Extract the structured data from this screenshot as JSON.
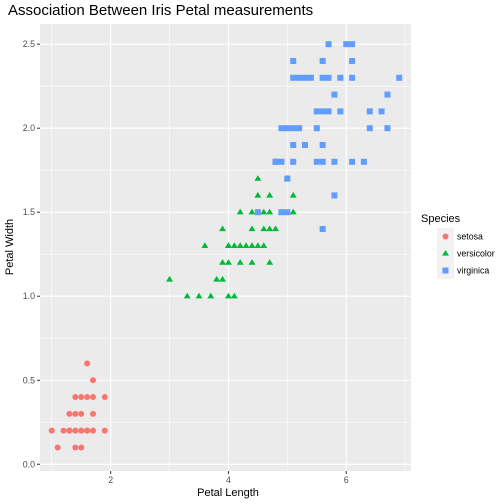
{
  "chart_data": {
    "type": "scatter",
    "title": "Association Between Iris Petal measurements",
    "xlabel": "Petal Length",
    "ylabel": "Petal Width",
    "xlim": [
      0.8,
      7.1
    ],
    "ylim": [
      -0.04,
      2.62
    ],
    "x_ticks": [
      2,
      4,
      6
    ],
    "x_tick_labels": [
      "2",
      "4",
      "6"
    ],
    "y_ticks": [
      0.0,
      0.5,
      1.0,
      1.5,
      2.0,
      2.5
    ],
    "y_tick_labels": [
      "0.0",
      "0.5",
      "1.0",
      "1.5",
      "2.0",
      "2.5"
    ],
    "grid": true,
    "background": "#ebebeb",
    "legend": {
      "title": "Species",
      "position": "right",
      "entries": [
        "setosa",
        "versicolor",
        "virginica"
      ]
    },
    "series": [
      {
        "name": "setosa",
        "color": "#f8766d",
        "shape": "circle",
        "points": [
          [
            1.6,
            0.6
          ],
          [
            1.7,
            0.5
          ],
          [
            1.4,
            0.4
          ],
          [
            1.5,
            0.4
          ],
          [
            1.6,
            0.4
          ],
          [
            1.7,
            0.4
          ],
          [
            1.9,
            0.4
          ],
          [
            1.3,
            0.3
          ],
          [
            1.4,
            0.3
          ],
          [
            1.5,
            0.3
          ],
          [
            1.7,
            0.3
          ],
          [
            1.3,
            0.2
          ],
          [
            1.4,
            0.2
          ],
          [
            1.5,
            0.2
          ],
          [
            1.6,
            0.2
          ],
          [
            1.7,
            0.2
          ],
          [
            1.9,
            0.2
          ],
          [
            1.2,
            0.2
          ],
          [
            1.0,
            0.2
          ],
          [
            1.1,
            0.1
          ],
          [
            1.4,
            0.1
          ],
          [
            1.5,
            0.1
          ],
          [
            1.6,
            0.2
          ],
          [
            1.3,
            0.2
          ],
          [
            1.5,
            0.2
          ]
        ]
      },
      {
        "name": "versicolor",
        "color": "#00ba38",
        "shape": "triangle",
        "points": [
          [
            5.0,
            1.7
          ],
          [
            4.5,
            1.6
          ],
          [
            4.7,
            1.6
          ],
          [
            4.8,
            1.8
          ],
          [
            4.4,
            1.5
          ],
          [
            4.5,
            1.5
          ],
          [
            4.6,
            1.5
          ],
          [
            4.9,
            1.5
          ],
          [
            5.1,
            1.6
          ],
          [
            4.2,
            1.5
          ],
          [
            4.7,
            1.4
          ],
          [
            4.6,
            1.4
          ],
          [
            4.4,
            1.4
          ],
          [
            4.8,
            1.4
          ],
          [
            3.9,
            1.4
          ],
          [
            4.0,
            1.3
          ],
          [
            4.1,
            1.3
          ],
          [
            4.2,
            1.3
          ],
          [
            4.3,
            1.3
          ],
          [
            4.4,
            1.3
          ],
          [
            4.5,
            1.3
          ],
          [
            4.6,
            1.3
          ],
          [
            3.6,
            1.3
          ],
          [
            3.9,
            1.2
          ],
          [
            4.0,
            1.2
          ],
          [
            4.2,
            1.2
          ],
          [
            4.4,
            1.2
          ],
          [
            4.7,
            1.2
          ],
          [
            3.8,
            1.1
          ],
          [
            3.9,
            1.1
          ],
          [
            3.0,
            1.1
          ],
          [
            4.1,
            1.0
          ],
          [
            3.5,
            1.0
          ],
          [
            3.3,
            1.0
          ],
          [
            3.7,
            1.0
          ],
          [
            4.0,
            1.0
          ],
          [
            4.5,
            1.7
          ],
          [
            5.1,
            1.5
          ],
          [
            4.0,
            1.3
          ],
          [
            4.7,
            1.5
          ]
        ]
      },
      {
        "name": "virginica",
        "color": "#619cff",
        "shape": "square",
        "points": [
          [
            5.7,
            2.5
          ],
          [
            6.1,
            2.5
          ],
          [
            6.0,
            2.5
          ],
          [
            5.1,
            2.4
          ],
          [
            5.6,
            2.4
          ],
          [
            6.1,
            2.4
          ],
          [
            5.1,
            2.3
          ],
          [
            5.2,
            2.3
          ],
          [
            5.3,
            2.3
          ],
          [
            5.4,
            2.3
          ],
          [
            5.6,
            2.3
          ],
          [
            5.7,
            2.3
          ],
          [
            5.9,
            2.3
          ],
          [
            6.1,
            2.3
          ],
          [
            6.9,
            2.3
          ],
          [
            6.7,
            2.2
          ],
          [
            5.8,
            2.2
          ],
          [
            6.4,
            2.1
          ],
          [
            5.5,
            2.1
          ],
          [
            5.6,
            2.1
          ],
          [
            5.7,
            2.1
          ],
          [
            5.9,
            2.1
          ],
          [
            6.6,
            2.1
          ],
          [
            4.9,
            2.0
          ],
          [
            5.0,
            2.0
          ],
          [
            5.1,
            2.0
          ],
          [
            5.2,
            2.0
          ],
          [
            5.5,
            2.0
          ],
          [
            6.7,
            2.0
          ],
          [
            6.4,
            2.0
          ],
          [
            5.1,
            1.9
          ],
          [
            5.3,
            1.9
          ],
          [
            5.6,
            1.9
          ],
          [
            5.1,
            1.8
          ],
          [
            4.8,
            1.8
          ],
          [
            5.5,
            1.8
          ],
          [
            5.6,
            1.8
          ],
          [
            6.1,
            1.8
          ],
          [
            6.3,
            1.8
          ],
          [
            5.8,
            1.8
          ],
          [
            4.8,
            1.8
          ],
          [
            4.9,
            1.8
          ],
          [
            5.0,
            1.7
          ],
          [
            5.8,
            1.6
          ],
          [
            5.6,
            1.4
          ],
          [
            4.5,
            1.5
          ],
          [
            4.9,
            1.5
          ],
          [
            5.0,
            1.5
          ]
        ]
      }
    ]
  }
}
